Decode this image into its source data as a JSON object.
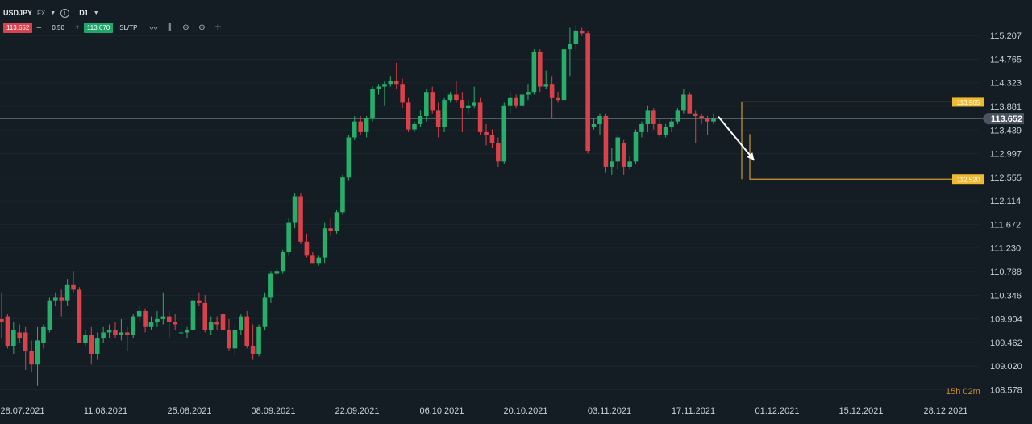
{
  "toolbar": {
    "symbol": "USDJPY",
    "market": "FX",
    "timeframe": "D1",
    "bid": "113.652",
    "ask": "113.670",
    "lot": "0.50",
    "minus": "–",
    "plus": "+",
    "sltp": "SL/TP",
    "icons": [
      "line-chart-icon",
      "candles-icon",
      "zoom-out-icon",
      "zoom-in-icon",
      "crosshair-icon"
    ]
  },
  "timer": "15h 02m",
  "colors": {
    "background": "#151d24",
    "bull": "#27ae6b",
    "bear": "#d9414b",
    "level": "#f0b92f",
    "current_line": "#6b8a80",
    "current_tag": "#4a5561"
  },
  "chart_data": {
    "type": "candlestick",
    "symbol": "USDJPY",
    "timeframe": "D1",
    "ylim": [
      108.45,
      115.45
    ],
    "y_ticks": [
      "115.207",
      "114.765",
      "114.323",
      "113.881",
      "113.439",
      "112.997",
      "112.555",
      "112.114",
      "111.672",
      "111.230",
      "110.788",
      "110.346",
      "109.904",
      "109.462",
      "109.020",
      "108.578"
    ],
    "x_ticks": [
      "28.07.2021",
      "11.08.2021",
      "25.08.2021",
      "08.09.2021",
      "22.09.2021",
      "06.10.2021",
      "20.10.2021",
      "03.11.2021",
      "17.11.2021",
      "01.12.2021",
      "15.12.2021",
      "28.12.2021"
    ],
    "current_price": 113.652,
    "resistance": 113.965,
    "support": 112.52,
    "resistance_label": "113.965",
    "support_label": "112.520",
    "current_label": "113.652",
    "candles": [
      {
        "o": 109.9,
        "h": 110.4,
        "l": 109.55,
        "c": 109.85
      },
      {
        "o": 109.95,
        "h": 110.0,
        "l": 109.35,
        "c": 109.4
      },
      {
        "o": 109.4,
        "h": 109.85,
        "l": 109.25,
        "c": 109.7
      },
      {
        "o": 109.65,
        "h": 109.8,
        "l": 109.45,
        "c": 109.55
      },
      {
        "o": 109.65,
        "h": 109.75,
        "l": 108.95,
        "c": 109.3
      },
      {
        "o": 109.3,
        "h": 109.5,
        "l": 108.9,
        "c": 109.05
      },
      {
        "o": 109.05,
        "h": 109.75,
        "l": 108.65,
        "c": 109.5
      },
      {
        "o": 109.45,
        "h": 109.8,
        "l": 109.35,
        "c": 109.75
      },
      {
        "o": 109.7,
        "h": 110.3,
        "l": 109.65,
        "c": 110.25
      },
      {
        "o": 110.25,
        "h": 110.4,
        "l": 110.15,
        "c": 110.3
      },
      {
        "o": 110.3,
        "h": 110.45,
        "l": 109.95,
        "c": 110.25
      },
      {
        "o": 110.25,
        "h": 110.65,
        "l": 110.15,
        "c": 110.55
      },
      {
        "o": 110.55,
        "h": 110.8,
        "l": 110.4,
        "c": 110.45
      },
      {
        "o": 110.45,
        "h": 110.5,
        "l": 109.45,
        "c": 109.45
      },
      {
        "o": 109.45,
        "h": 109.7,
        "l": 109.4,
        "c": 109.6
      },
      {
        "o": 109.6,
        "h": 109.75,
        "l": 109.05,
        "c": 109.25
      },
      {
        "o": 109.25,
        "h": 109.65,
        "l": 109.15,
        "c": 109.55
      },
      {
        "o": 109.55,
        "h": 109.75,
        "l": 109.45,
        "c": 109.65
      },
      {
        "o": 109.65,
        "h": 109.8,
        "l": 109.55,
        "c": 109.7
      },
      {
        "o": 109.7,
        "h": 109.85,
        "l": 109.55,
        "c": 109.6
      },
      {
        "o": 109.6,
        "h": 109.9,
        "l": 109.5,
        "c": 109.65
      },
      {
        "o": 109.65,
        "h": 109.75,
        "l": 109.3,
        "c": 109.6
      },
      {
        "o": 109.6,
        "h": 110.0,
        "l": 109.55,
        "c": 109.95
      },
      {
        "o": 109.95,
        "h": 110.15,
        "l": 109.85,
        "c": 110.05
      },
      {
        "o": 110.05,
        "h": 110.1,
        "l": 109.65,
        "c": 109.75
      },
      {
        "o": 109.75,
        "h": 109.95,
        "l": 109.7,
        "c": 109.85
      },
      {
        "o": 109.85,
        "h": 110.05,
        "l": 109.75,
        "c": 109.9
      },
      {
        "o": 109.9,
        "h": 110.4,
        "l": 109.8,
        "c": 109.95
      },
      {
        "o": 109.95,
        "h": 110.05,
        "l": 109.55,
        "c": 109.85
      },
      {
        "o": 109.85,
        "h": 110.0,
        "l": 109.7,
        "c": 109.8
      },
      {
        "o": 109.65,
        "h": 109.7,
        "l": 109.6,
        "c": 109.65
      },
      {
        "o": 109.65,
        "h": 109.75,
        "l": 109.55,
        "c": 109.7
      },
      {
        "o": 109.7,
        "h": 110.3,
        "l": 109.65,
        "c": 110.25
      },
      {
        "o": 110.25,
        "h": 110.4,
        "l": 110.15,
        "c": 110.2
      },
      {
        "o": 110.2,
        "h": 110.35,
        "l": 109.65,
        "c": 109.7
      },
      {
        "o": 109.7,
        "h": 109.95,
        "l": 109.6,
        "c": 109.85
      },
      {
        "o": 109.85,
        "h": 109.95,
        "l": 109.7,
        "c": 109.8
      },
      {
        "o": 110.0,
        "h": 110.05,
        "l": 109.6,
        "c": 109.7
      },
      {
        "o": 109.7,
        "h": 109.9,
        "l": 109.3,
        "c": 109.35
      },
      {
        "o": 109.35,
        "h": 109.8,
        "l": 109.2,
        "c": 109.7
      },
      {
        "o": 109.7,
        "h": 110.0,
        "l": 109.6,
        "c": 109.95
      },
      {
        "o": 109.95,
        "h": 110.05,
        "l": 109.35,
        "c": 109.4
      },
      {
        "o": 109.4,
        "h": 109.8,
        "l": 109.15,
        "c": 109.25
      },
      {
        "o": 109.25,
        "h": 109.8,
        "l": 109.2,
        "c": 109.75
      },
      {
        "o": 109.75,
        "h": 110.4,
        "l": 109.7,
        "c": 110.3
      },
      {
        "o": 110.3,
        "h": 110.8,
        "l": 110.2,
        "c": 110.75
      },
      {
        "o": 110.75,
        "h": 110.85,
        "l": 110.7,
        "c": 110.8
      },
      {
        "o": 110.8,
        "h": 111.2,
        "l": 110.75,
        "c": 111.15
      },
      {
        "o": 111.15,
        "h": 111.8,
        "l": 111.1,
        "c": 111.7
      },
      {
        "o": 111.7,
        "h": 112.25,
        "l": 111.6,
        "c": 112.2
      },
      {
        "o": 112.2,
        "h": 112.25,
        "l": 111.3,
        "c": 111.35
      },
      {
        "o": 111.35,
        "h": 111.5,
        "l": 111.05,
        "c": 111.1
      },
      {
        "o": 111.1,
        "h": 111.15,
        "l": 110.95,
        "c": 110.95
      },
      {
        "o": 110.95,
        "h": 111.1,
        "l": 110.9,
        "c": 111.05
      },
      {
        "o": 111.05,
        "h": 111.7,
        "l": 110.95,
        "c": 111.6
      },
      {
        "o": 111.6,
        "h": 111.8,
        "l": 111.45,
        "c": 111.55
      },
      {
        "o": 111.55,
        "h": 111.95,
        "l": 111.5,
        "c": 111.9
      },
      {
        "o": 111.9,
        "h": 112.6,
        "l": 111.85,
        "c": 112.55
      },
      {
        "o": 112.55,
        "h": 113.35,
        "l": 112.5,
        "c": 113.3
      },
      {
        "o": 113.3,
        "h": 113.7,
        "l": 113.25,
        "c": 113.6
      },
      {
        "o": 113.6,
        "h": 113.7,
        "l": 113.35,
        "c": 113.4
      },
      {
        "o": 113.4,
        "h": 113.7,
        "l": 113.3,
        "c": 113.65
      },
      {
        "o": 113.65,
        "h": 114.25,
        "l": 113.6,
        "c": 114.2
      },
      {
        "o": 114.2,
        "h": 114.3,
        "l": 114.1,
        "c": 114.25
      },
      {
        "o": 114.25,
        "h": 114.35,
        "l": 113.9,
        "c": 114.3
      },
      {
        "o": 114.3,
        "h": 114.45,
        "l": 114.25,
        "c": 114.35
      },
      {
        "o": 114.35,
        "h": 114.7,
        "l": 114.2,
        "c": 114.3
      },
      {
        "o": 114.3,
        "h": 114.4,
        "l": 113.85,
        "c": 113.95
      },
      {
        "o": 113.95,
        "h": 114.05,
        "l": 113.4,
        "c": 113.45
      },
      {
        "o": 113.45,
        "h": 113.6,
        "l": 113.4,
        "c": 113.55
      },
      {
        "o": 113.55,
        "h": 113.8,
        "l": 113.5,
        "c": 113.7
      },
      {
        "o": 113.7,
        "h": 114.2,
        "l": 113.6,
        "c": 114.15
      },
      {
        "o": 114.15,
        "h": 114.25,
        "l": 113.75,
        "c": 113.8
      },
      {
        "o": 113.8,
        "h": 113.95,
        "l": 113.3,
        "c": 113.5
      },
      {
        "o": 113.5,
        "h": 114.05,
        "l": 113.4,
        "c": 114.0
      },
      {
        "o": 114.0,
        "h": 114.15,
        "l": 113.95,
        "c": 114.1
      },
      {
        "o": 114.1,
        "h": 114.35,
        "l": 113.95,
        "c": 114.0
      },
      {
        "o": 114.0,
        "h": 114.15,
        "l": 113.4,
        "c": 113.85
      },
      {
        "o": 113.85,
        "h": 114.0,
        "l": 113.75,
        "c": 113.9
      },
      {
        "o": 113.9,
        "h": 114.25,
        "l": 113.85,
        "c": 113.95
      },
      {
        "o": 113.95,
        "h": 114.05,
        "l": 113.35,
        "c": 113.4
      },
      {
        "o": 113.4,
        "h": 113.55,
        "l": 113.15,
        "c": 113.35
      },
      {
        "o": 113.35,
        "h": 113.45,
        "l": 113.1,
        "c": 113.2
      },
      {
        "o": 113.2,
        "h": 113.3,
        "l": 112.75,
        "c": 112.85
      },
      {
        "o": 112.85,
        "h": 113.95,
        "l": 112.8,
        "c": 113.9
      },
      {
        "o": 113.9,
        "h": 114.15,
        "l": 113.75,
        "c": 114.05
      },
      {
        "o": 114.05,
        "h": 114.1,
        "l": 113.85,
        "c": 113.9
      },
      {
        "o": 113.9,
        "h": 114.15,
        "l": 113.85,
        "c": 114.1
      },
      {
        "o": 114.1,
        "h": 114.3,
        "l": 114.0,
        "c": 114.15
      },
      {
        "o": 114.15,
        "h": 114.95,
        "l": 114.1,
        "c": 114.9
      },
      {
        "o": 114.9,
        "h": 114.95,
        "l": 114.15,
        "c": 114.25
      },
      {
        "o": 114.25,
        "h": 114.55,
        "l": 114.2,
        "c": 114.3
      },
      {
        "o": 114.3,
        "h": 114.45,
        "l": 113.65,
        "c": 114.05
      },
      {
        "o": 114.05,
        "h": 114.15,
        "l": 113.95,
        "c": 114.0
      },
      {
        "o": 114.0,
        "h": 115.0,
        "l": 113.95,
        "c": 114.95
      },
      {
        "o": 114.95,
        "h": 115.35,
        "l": 114.45,
        "c": 115.05
      },
      {
        "o": 115.05,
        "h": 115.4,
        "l": 114.95,
        "c": 115.3
      },
      {
        "o": 115.3,
        "h": 115.35,
        "l": 115.2,
        "c": 115.25
      },
      {
        "o": 115.25,
        "h": 115.3,
        "l": 113.0,
        "c": 113.05
      },
      {
        "o": 113.5,
        "h": 113.65,
        "l": 113.45,
        "c": 113.55
      },
      {
        "o": 113.55,
        "h": 113.75,
        "l": 113.35,
        "c": 113.7
      },
      {
        "o": 113.7,
        "h": 113.75,
        "l": 112.65,
        "c": 112.75
      },
      {
        "o": 112.75,
        "h": 113.1,
        "l": 112.6,
        "c": 112.85
      },
      {
        "o": 112.85,
        "h": 113.35,
        "l": 112.7,
        "c": 113.3
      },
      {
        "o": 113.2,
        "h": 113.25,
        "l": 112.6,
        "c": 112.75
      },
      {
        "o": 112.75,
        "h": 112.95,
        "l": 112.7,
        "c": 112.85
      },
      {
        "o": 112.85,
        "h": 113.45,
        "l": 112.8,
        "c": 113.4
      },
      {
        "o": 113.4,
        "h": 113.6,
        "l": 113.3,
        "c": 113.55
      },
      {
        "o": 113.55,
        "h": 113.9,
        "l": 113.4,
        "c": 113.8
      },
      {
        "o": 113.8,
        "h": 113.85,
        "l": 113.45,
        "c": 113.55
      },
      {
        "o": 113.55,
        "h": 113.65,
        "l": 113.3,
        "c": 113.35
      },
      {
        "o": 113.35,
        "h": 113.55,
        "l": 113.3,
        "c": 113.5
      },
      {
        "o": 113.5,
        "h": 113.65,
        "l": 113.4,
        "c": 113.6
      },
      {
        "o": 113.6,
        "h": 113.85,
        "l": 113.55,
        "c": 113.8
      },
      {
        "o": 113.8,
        "h": 114.2,
        "l": 113.75,
        "c": 114.1
      },
      {
        "o": 114.1,
        "h": 114.15,
        "l": 113.8,
        "c": 113.75
      },
      {
        "o": 113.75,
        "h": 113.8,
        "l": 113.2,
        "c": 113.7
      },
      {
        "o": 113.7,
        "h": 113.75,
        "l": 113.55,
        "c": 113.65
      },
      {
        "o": 113.65,
        "h": 113.7,
        "l": 113.35,
        "c": 113.6
      },
      {
        "o": 113.6,
        "h": 113.75,
        "l": 113.55,
        "c": 113.65
      }
    ],
    "arrow": {
      "from_index": 119,
      "from_price": 113.75,
      "to_index": 125,
      "to_price": 112.75
    }
  }
}
